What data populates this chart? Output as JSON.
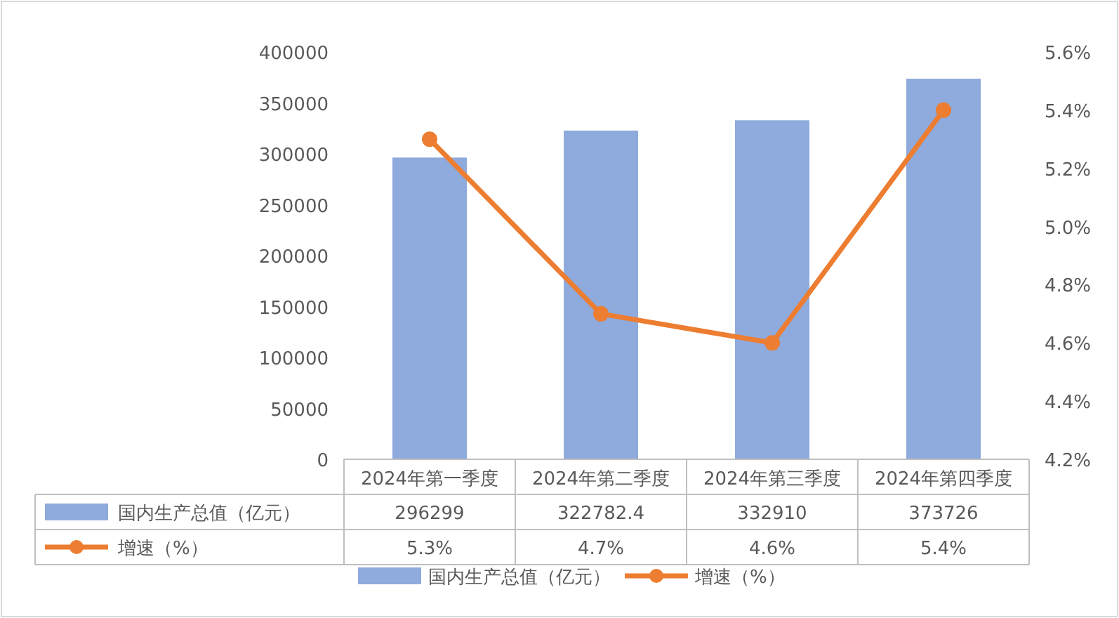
{
  "chart_data": {
    "type": "bar",
    "categories": [
      "2024年第一季度",
      "2024年第二季度",
      "2024年第三季度",
      "2024年第四季度"
    ],
    "series": [
      {
        "name": "国内生产总值（亿元）",
        "color": "#8faadc",
        "values": [
          296299,
          322782.4,
          332910,
          373726
        ],
        "value_labels": [
          "296299",
          "322782.4",
          "332910",
          "373726"
        ]
      },
      {
        "name": "增速（%）",
        "type": "line",
        "axis": "y2",
        "color": "#ed7d31",
        "values": [
          5.3,
          4.7,
          4.6,
          5.4
        ],
        "value_labels": [
          "5.3%",
          "4.7%",
          "4.6%",
          "5.4%"
        ]
      }
    ],
    "ylim": [
      0,
      400000
    ],
    "yticks": [
      0,
      50000,
      100000,
      150000,
      200000,
      250000,
      300000,
      350000,
      400000
    ],
    "y2lim": [
      4.2,
      5.6
    ],
    "y2ticks": [
      {
        "value": 4.2,
        "label": "4.2%"
      },
      {
        "value": 4.4,
        "label": "4.4%"
      },
      {
        "value": 4.6,
        "label": "4.6%"
      },
      {
        "value": 4.8,
        "label": "4.8%"
      },
      {
        "value": 5.0,
        "label": "5.0%"
      },
      {
        "value": 5.2,
        "label": "5.2%"
      },
      {
        "value": 5.4,
        "label": "5.4%"
      },
      {
        "value": 5.6,
        "label": "5.6%"
      }
    ],
    "marker": "circle",
    "legend": "bottom",
    "grid": false
  }
}
